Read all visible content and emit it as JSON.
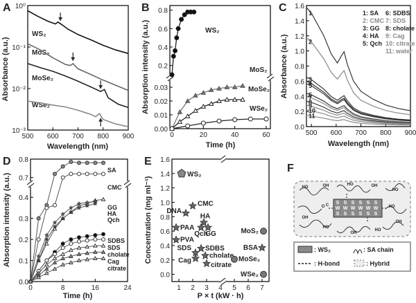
{
  "panel_labels": [
    "A",
    "B",
    "C",
    "D",
    "E",
    "F"
  ],
  "chart_data": [
    {
      "panel": "A",
      "type": "line",
      "xlabel": "Wavelength (nm)",
      "ylabel": "Absorbance (a.u.)",
      "xlim": [
        500,
        900
      ],
      "ylim": [
        0.001,
        1
      ],
      "yscale": "log",
      "xticks": [
        "500",
        "600",
        "700",
        "800",
        "900"
      ],
      "yticks": [
        "10⁻³",
        "10⁻²",
        "10⁻¹",
        "10⁰"
      ],
      "series": [
        {
          "name": "WS₂",
          "color": "#111111",
          "x": [
            500,
            540,
            580,
            610,
            620,
            635,
            660,
            700,
            750,
            800,
            850,
            900
          ],
          "y": [
            0.75,
            0.55,
            0.42,
            0.36,
            0.4,
            0.35,
            0.27,
            0.2,
            0.15,
            0.11,
            0.085,
            0.07
          ]
        },
        {
          "name": "MoS₂",
          "color": "#666666",
          "x": [
            500,
            550,
            600,
            650,
            670,
            680,
            700,
            750,
            800,
            850,
            900
          ],
          "y": [
            0.12,
            0.085,
            0.055,
            0.038,
            0.036,
            0.04,
            0.03,
            0.022,
            0.016,
            0.012,
            0.009
          ]
        },
        {
          "name": "MoSe₂",
          "color": "#222222",
          "x": [
            500,
            550,
            600,
            650,
            700,
            750,
            790,
            805,
            820,
            860,
            900
          ],
          "y": [
            0.04,
            0.032,
            0.026,
            0.02,
            0.015,
            0.011,
            0.0085,
            0.0095,
            0.006,
            0.0042,
            0.0035
          ]
        },
        {
          "name": "WSe₂",
          "color": "#888888",
          "x": [
            500,
            550,
            600,
            650,
            700,
            750,
            770,
            785,
            800,
            850,
            900
          ],
          "y": [
            0.005,
            0.0045,
            0.004,
            0.0036,
            0.003,
            0.0024,
            0.0021,
            0.0025,
            0.0018,
            0.0014,
            0.0012
          ]
        }
      ],
      "arrows_at_nm": [
        630,
        680,
        790,
        790
      ]
    },
    {
      "panel": "B",
      "type": "line",
      "xlabel": "Time (h)",
      "ylabel": "Absorption intensity (a.u.)",
      "xlim": [
        0,
        60
      ],
      "ylim_upper": [
        0.1,
        0.85
      ],
      "ylim_lower": [
        0,
        0.035
      ],
      "xticks": [
        "0",
        "20",
        "40",
        "60"
      ],
      "yticks_upper": [
        "0.2",
        "0.4",
        "0.6",
        "0.8"
      ],
      "yticks_lower": [
        "0.00",
        "0.01",
        "0.02",
        "0.03"
      ],
      "series": [
        {
          "name": "WS₂",
          "marker": "filled-circle",
          "x": [
            0,
            1,
            2,
            3,
            4,
            6,
            8,
            10,
            12,
            14
          ],
          "y": [
            0.1,
            0.3,
            0.36,
            0.5,
            0.6,
            0.7,
            0.75,
            0.78,
            0.78,
            0.78
          ]
        },
        {
          "name": "MoS₂",
          "marker": "filled-triangle",
          "x": [
            0,
            5,
            10,
            15,
            20,
            25,
            30,
            35,
            40,
            45
          ],
          "y": [
            0.0,
            0.012,
            0.02,
            0.024,
            0.026,
            0.028,
            0.029,
            0.03,
            0.03,
            0.031
          ]
        },
        {
          "name": "MoSe₂",
          "marker": "open-triangle",
          "x": [
            0,
            5,
            10,
            15,
            20,
            25,
            30,
            35,
            40,
            45
          ],
          "y": [
            0.0,
            0.005,
            0.009,
            0.013,
            0.016,
            0.018,
            0.02,
            0.021,
            0.021,
            0.021
          ]
        },
        {
          "name": "WSe₂",
          "marker": "open-circle",
          "x": [
            0,
            10,
            20,
            30,
            40,
            50,
            60
          ],
          "y": [
            0.0,
            0.002,
            0.004,
            0.0055,
            0.0065,
            0.007,
            0.007
          ]
        }
      ]
    },
    {
      "panel": "C",
      "type": "line",
      "xlabel": "Wavelength (nm)",
      "ylabel": "Absorbance (a.u.)",
      "xlim": [
        480,
        900
      ],
      "ylim": [
        0,
        1.6
      ],
      "xticks": [
        "500",
        "600",
        "700",
        "800",
        "900"
      ],
      "yticks": [
        "0.0",
        "0.2",
        "0.4",
        "0.6",
        "0.8",
        "1.0",
        "1.2",
        "1.4",
        "1.6"
      ],
      "legend": [
        "1: SA",
        "2: CMC",
        "3: GG",
        "4: HA",
        "5: Qch",
        "6: SDBS",
        "7: SDS",
        "8: cholate",
        "9: Cag",
        "10: citrate",
        "11: water"
      ],
      "legend_gray": [
        false,
        true,
        false,
        false,
        false,
        false,
        true,
        false,
        true,
        true,
        true
      ],
      "curve_labels": [
        "1",
        "2",
        "3",
        "4",
        "5",
        "6",
        "7",
        "8",
        "9",
        "10",
        "11"
      ],
      "start_values_at_500nm": [
        1.5,
        1.12,
        0.62,
        0.57,
        0.54,
        0.42,
        0.38,
        0.32,
        0.27,
        0.21,
        0.14
      ]
    },
    {
      "panel": "D",
      "type": "line",
      "xlabel": "Time (h)",
      "ylabel": "Absorption intensity (a.u.)",
      "xlim": [
        0,
        24
      ],
      "ylim_upper": [
        0.68,
        0.8
      ],
      "ylim_lower": [
        0,
        0.45
      ],
      "xticks": [
        "0",
        "8",
        "16",
        "24"
      ],
      "yticks_upper": [
        "0.7",
        "0.8"
      ],
      "yticks_lower": [
        "0.0",
        "0.1",
        "0.2",
        "0.3",
        "0.4"
      ],
      "series": [
        {
          "name": "SA",
          "x": [
            0,
            2,
            4,
            6,
            8,
            10,
            12,
            14,
            16,
            18
          ],
          "y": [
            0,
            0.3,
            0.55,
            0.72,
            0.76,
            0.785,
            0.78,
            0.78,
            0.78,
            0.78
          ]
        },
        {
          "name": "CMC",
          "x": [
            0,
            2,
            4,
            6,
            8,
            10,
            12,
            14,
            16,
            18
          ],
          "y": [
            0,
            0.2,
            0.35,
            0.55,
            0.7,
            0.72,
            0.72,
            0.72,
            0.72,
            0.72
          ]
        },
        {
          "name": "GG",
          "x": [
            0,
            2,
            4,
            6,
            8,
            10,
            12,
            14,
            16,
            18
          ],
          "y": [
            0,
            0.1,
            0.18,
            0.25,
            0.3,
            0.33,
            0.36,
            0.37,
            0.385,
            0.39
          ]
        },
        {
          "name": "HA",
          "x": [
            0,
            2,
            4,
            6,
            8,
            10,
            12,
            14,
            16
          ],
          "y": [
            0,
            0.12,
            0.22,
            0.28,
            0.32,
            0.35,
            0.37,
            0.375,
            0.38
          ]
        },
        {
          "name": "Qch",
          "x": [
            0,
            2,
            4,
            6,
            8,
            10,
            12,
            14,
            16
          ],
          "y": [
            0,
            0.1,
            0.2,
            0.26,
            0.3,
            0.33,
            0.35,
            0.36,
            0.37
          ]
        },
        {
          "name": "SDBS",
          "x": [
            0,
            2,
            4,
            6,
            8,
            10,
            12,
            14,
            16,
            18
          ],
          "y": [
            0,
            0.05,
            0.1,
            0.14,
            0.18,
            0.2,
            0.21,
            0.215,
            0.22,
            0.225
          ]
        },
        {
          "name": "SDS",
          "x": [
            0,
            2,
            4,
            6,
            8,
            10,
            12,
            14,
            16,
            18
          ],
          "y": [
            0,
            0.05,
            0.1,
            0.13,
            0.16,
            0.18,
            0.19,
            0.195,
            0.2,
            0.2
          ]
        },
        {
          "name": "cholate",
          "x": [
            0,
            2,
            4,
            6,
            8,
            10,
            12,
            14,
            16,
            18
          ],
          "y": [
            0,
            0.04,
            0.08,
            0.11,
            0.13,
            0.15,
            0.16,
            0.165,
            0.17,
            0.17
          ]
        },
        {
          "name": "Cag",
          "x": [
            0,
            2,
            4,
            6,
            8,
            10,
            12,
            14,
            16,
            18
          ],
          "y": [
            0,
            0.03,
            0.06,
            0.09,
            0.11,
            0.12,
            0.13,
            0.135,
            0.14,
            0.14
          ]
        },
        {
          "name": "citrate",
          "x": [
            0,
            2,
            4,
            6,
            8,
            10,
            12,
            14,
            16,
            18
          ],
          "y": [
            0,
            0.02,
            0.04,
            0.06,
            0.08,
            0.09,
            0.1,
            0.105,
            0.11,
            0.11
          ]
        }
      ]
    },
    {
      "panel": "E",
      "type": "scatter",
      "xlabel": "P × t (kW · h)",
      "ylabel": "Concentration (mg ml⁻¹)",
      "xlim": [
        0.5,
        7.5
      ],
      "ylim": [
        -0.1,
        1.6
      ],
      "xticks": [
        "1",
        "2",
        "3",
        "4",
        "5",
        "6",
        "7"
      ],
      "yticks": [
        "0.0",
        "0.2",
        "0.4",
        "0.6",
        "0.8",
        "1.0",
        "1.2",
        "1.4",
        "1.6"
      ],
      "points": [
        {
          "name": "WS₂",
          "x": 1.2,
          "y": 1.4,
          "marker": "pentagon"
        },
        {
          "name": "CMC",
          "x": 2.0,
          "y": 0.95,
          "marker": "star"
        },
        {
          "name": "DNA",
          "x": 1.5,
          "y": 0.85,
          "marker": "star"
        },
        {
          "name": "PAA",
          "x": 0.8,
          "y": 0.65,
          "marker": "star"
        },
        {
          "name": "PVA",
          "x": 0.8,
          "y": 0.48,
          "marker": "star"
        },
        {
          "name": "HA",
          "x": 2.8,
          "y": 0.72,
          "marker": "star"
        },
        {
          "name": "Qch",
          "x": 2.6,
          "y": 0.65,
          "marker": "star"
        },
        {
          "name": "GG",
          "x": 3.1,
          "y": 0.65,
          "marker": "star"
        },
        {
          "name": "SDS",
          "x": 2.2,
          "y": 0.3,
          "marker": "star"
        },
        {
          "name": "SDBS",
          "x": 2.6,
          "y": 0.36,
          "marker": "star"
        },
        {
          "name": "Cag",
          "x": 2.2,
          "y": 0.22,
          "marker": "star"
        },
        {
          "name": "cholate",
          "x": 2.9,
          "y": 0.26,
          "marker": "star"
        },
        {
          "name": "citrate",
          "x": 3.0,
          "y": 0.15,
          "marker": "star"
        },
        {
          "name": "BSA",
          "x": 7.0,
          "y": 0.37,
          "marker": "star"
        },
        {
          "name": "MoS₂",
          "x": 7.1,
          "y": 0.6,
          "marker": "circle"
        },
        {
          "name": "MoSe₂",
          "x": 5.0,
          "y": 0.21,
          "marker": "circle"
        },
        {
          "name": "WSe₂",
          "x": 7.1,
          "y": 0.0,
          "marker": "circle"
        }
      ]
    }
  ],
  "panel_F": {
    "legend": [
      ": WS₂",
      ": SA chain",
      ": H-bond",
      ": Hybrid"
    ],
    "atom_letters": [
      "S",
      "W"
    ],
    "group_letters": [
      "HO",
      "OH",
      "O",
      "C"
    ]
  }
}
